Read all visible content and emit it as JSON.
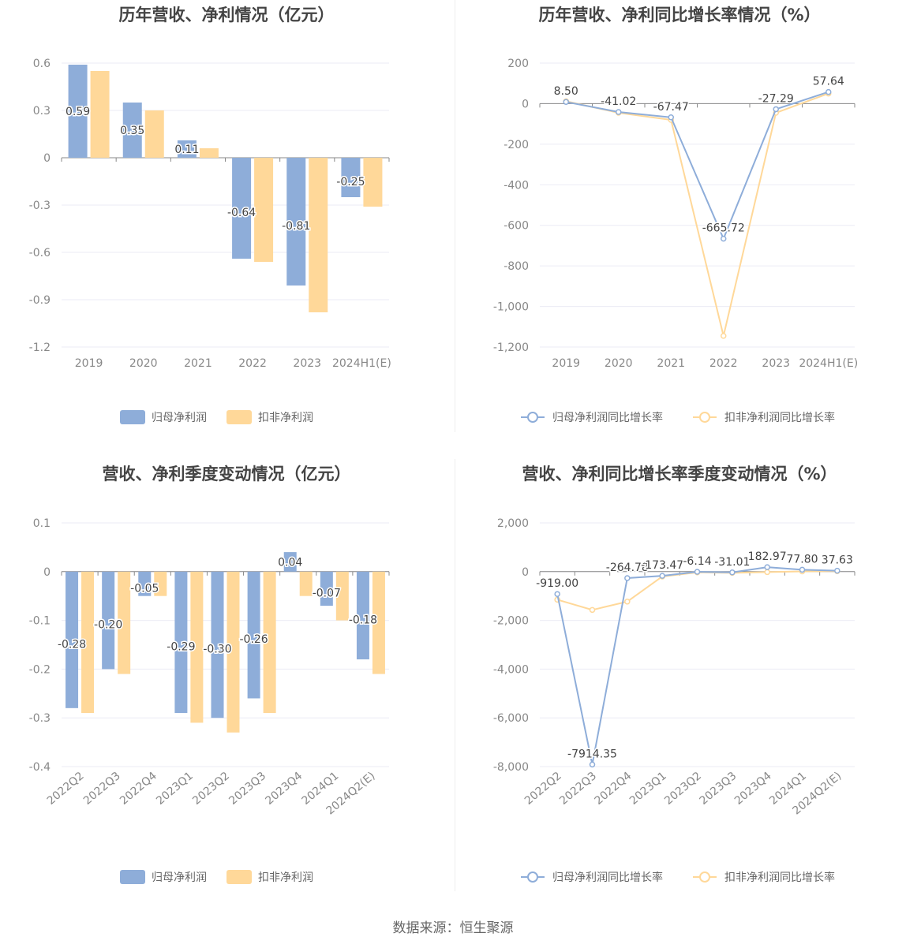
{
  "colors": {
    "primary": "#8eadd9",
    "secondary": "#ffd899",
    "grid": "#ebebf5",
    "axis": "#888888"
  },
  "legend": {
    "bar_primary": "归母净利润",
    "bar_secondary": "扣非净利润",
    "line_primary": "归母净利润同比增长率",
    "line_secondary": "扣非净利润同比增长率"
  },
  "source": "数据来源：恒生聚源",
  "chart_data": [
    {
      "type": "bar",
      "title": "历年营收、净利情况（亿元）",
      "categories": [
        "2019",
        "2020",
        "2021",
        "2022",
        "2023",
        "2024H1(E)"
      ],
      "series": [
        {
          "name": "归母净利润",
          "values": [
            0.59,
            0.35,
            0.11,
            -0.64,
            -0.81,
            -0.25
          ]
        },
        {
          "name": "扣非净利润",
          "values": [
            0.55,
            0.3,
            0.06,
            -0.66,
            -0.98,
            -0.31
          ]
        }
      ],
      "data_labels": [
        "0.59",
        "0.35",
        "0.11",
        "-0.64",
        "-0.81",
        "-0.25"
      ],
      "ylim": [
        -1.2,
        0.6
      ],
      "yticks": [
        0.6,
        0.3,
        0,
        -0.3,
        -0.6,
        -0.9,
        -1.2
      ],
      "ytick_labels": [
        "0.6",
        "0.3",
        "0",
        "-0.3",
        "-0.6",
        "-0.9",
        "-1.2"
      ],
      "legend_position": "bottom"
    },
    {
      "type": "line",
      "title": "历年营收、净利同比增长率情况（%）",
      "categories": [
        "2019",
        "2020",
        "2021",
        "2022",
        "2023",
        "2024H1(E)"
      ],
      "series": [
        {
          "name": "归母净利润同比增长率",
          "values": [
            8.5,
            -41.02,
            -67.47,
            -665.72,
            -27.29,
            57.64
          ]
        },
        {
          "name": "扣非净利润同比增长率",
          "values": [
            12,
            -45,
            -80,
            -1145,
            -45,
            50
          ]
        }
      ],
      "data_labels": [
        "8.50",
        "-41.02",
        "-67.47",
        "-665.72",
        "-27.29",
        "57.64"
      ],
      "ylim": [
        -1200,
        200
      ],
      "yticks": [
        200,
        0,
        -200,
        -400,
        -600,
        -800,
        -1000,
        -1200
      ],
      "ytick_labels": [
        "200",
        "0",
        "-200",
        "-400",
        "-600",
        "-800",
        "-1,000",
        "-1,200"
      ],
      "legend_position": "bottom"
    },
    {
      "type": "bar",
      "title": "营收、净利季度变动情况（亿元）",
      "categories": [
        "2022Q2",
        "2022Q3",
        "2022Q4",
        "2023Q1",
        "2023Q2",
        "2023Q3",
        "2023Q4",
        "2024Q1",
        "2024Q2(E)"
      ],
      "series": [
        {
          "name": "归母净利润",
          "values": [
            -0.28,
            -0.2,
            -0.05,
            -0.29,
            -0.3,
            -0.26,
            0.04,
            -0.07,
            -0.18
          ]
        },
        {
          "name": "扣非净利润",
          "values": [
            -0.29,
            -0.21,
            -0.05,
            -0.31,
            -0.33,
            -0.29,
            -0.05,
            -0.1,
            -0.21
          ]
        }
      ],
      "data_labels": [
        "-0.28",
        "-0.20",
        "-0.05",
        "-0.29",
        "-0.30",
        "-0.26",
        "0.04",
        "-0.07",
        "-0.18"
      ],
      "ylim": [
        -0.4,
        0.1
      ],
      "yticks": [
        0.1,
        0,
        -0.1,
        -0.2,
        -0.3,
        -0.4
      ],
      "ytick_labels": [
        "0.1",
        "0",
        "-0.1",
        "-0.2",
        "-0.3",
        "-0.4"
      ],
      "legend_position": "bottom"
    },
    {
      "type": "line",
      "title": "营收、净利同比增长率季度变动情况（%）",
      "categories": [
        "2022Q2",
        "2022Q3",
        "2022Q4",
        "2023Q1",
        "2023Q2",
        "2023Q3",
        "2023Q4",
        "2024Q1",
        "2024Q2(E)"
      ],
      "series": [
        {
          "name": "归母净利润同比增长率",
          "values": [
            -919.0,
            -7914.35,
            -264.78,
            -173.47,
            -6.14,
            -31.01,
            182.97,
            77.8,
            37.63
          ]
        },
        {
          "name": "扣非净利润同比增长率",
          "values": [
            -1150,
            -1570,
            -1230,
            -200,
            -30,
            -50,
            -20,
            10,
            20
          ]
        }
      ],
      "data_labels": [
        "-919.00",
        "-7914.35",
        "-264.78",
        "-173.47",
        "-6.14",
        "-31.01",
        "182.97",
        "77.80",
        "37.63"
      ],
      "ylim": [
        -8000,
        2000
      ],
      "yticks": [
        2000,
        0,
        -2000,
        -4000,
        -6000,
        -8000
      ],
      "ytick_labels": [
        "2,000",
        "0",
        "-2,000",
        "-4,000",
        "-6,000",
        "-8,000"
      ],
      "legend_position": "bottom"
    }
  ]
}
